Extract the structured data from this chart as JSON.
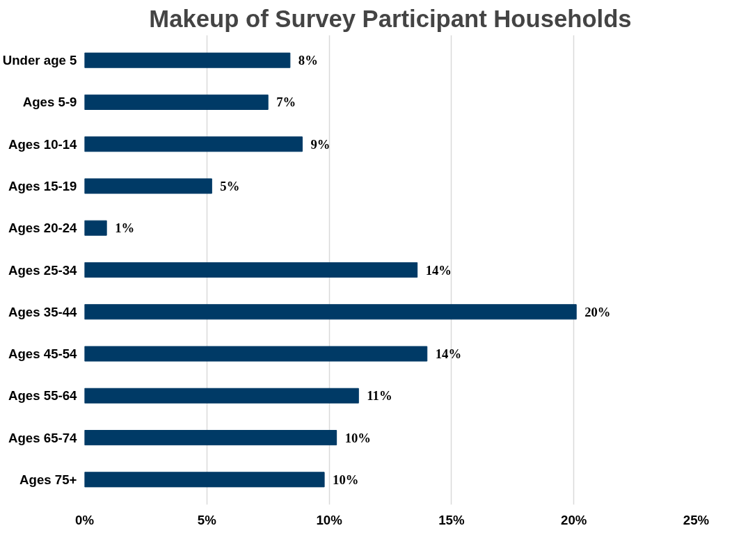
{
  "chart_data": {
    "type": "bar",
    "orientation": "horizontal",
    "title": "Makeup of Survey Participant Households",
    "categories": [
      "Under age 5",
      "Ages 5-9",
      "Ages 10-14",
      "Ages 15-19",
      "Ages 20-24",
      "Ages 25-34",
      "Ages 35-44",
      "Ages 45-54",
      "Ages 55-64",
      "Ages 65-74",
      "Ages 75+"
    ],
    "values": [
      8.4,
      7.5,
      8.9,
      5.2,
      0.9,
      13.6,
      20.1,
      14.0,
      11.2,
      10.3,
      9.8
    ],
    "value_labels": [
      "8%",
      "7%",
      "9%",
      "5%",
      "1%",
      "14%",
      "20%",
      "14%",
      "11%",
      "10%",
      "10%"
    ],
    "color": "#003a66",
    "xlim": [
      0,
      25
    ],
    "xticks": [
      {
        "value": 0,
        "label": "0%"
      },
      {
        "value": 5,
        "label": "5%"
      },
      {
        "value": 10,
        "label": "10%"
      },
      {
        "value": 15,
        "label": "15%"
      },
      {
        "value": 20,
        "label": "20%"
      },
      {
        "value": 25,
        "label": "25%"
      }
    ],
    "grid": "x"
  }
}
